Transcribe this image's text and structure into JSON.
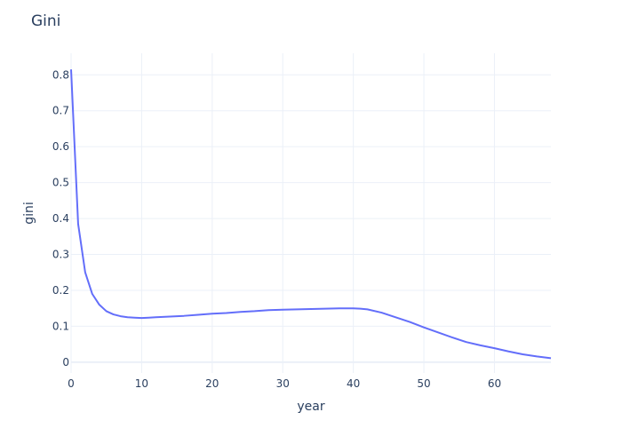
{
  "chart_data": {
    "type": "line",
    "title": "Gini",
    "xlabel": "year",
    "ylabel": "gini",
    "xlim": [
      0,
      68
    ],
    "ylim": [
      -0.03,
      0.86
    ],
    "x_ticks": [
      0,
      10,
      20,
      30,
      40,
      50,
      60
    ],
    "y_ticks": [
      0,
      0.1,
      0.2,
      0.3,
      0.4,
      0.5,
      0.6,
      0.7,
      0.8
    ],
    "y_tick_labels": [
      "0",
      "0.1",
      "0.2",
      "0.3",
      "0.4",
      "0.5",
      "0.6",
      "0.7",
      "0.8"
    ],
    "grid": true,
    "colors": {
      "line": "#636efa",
      "grid": "#ebf0f8",
      "zeroline": "#ebf0f8",
      "text": "#2a3f5f"
    },
    "series": [
      {
        "x": [
          0,
          1,
          2,
          3,
          4,
          5,
          6,
          7,
          8,
          9,
          10,
          11,
          12,
          14,
          16,
          18,
          20,
          22,
          24,
          26,
          28,
          30,
          32,
          34,
          36,
          38,
          40,
          41,
          42,
          44,
          46,
          48,
          50,
          52,
          54,
          56,
          58,
          60,
          62,
          64,
          66,
          68
        ],
        "y": [
          0.815,
          0.385,
          0.25,
          0.19,
          0.16,
          0.142,
          0.133,
          0.128,
          0.125,
          0.124,
          0.123,
          0.124,
          0.125,
          0.127,
          0.129,
          0.132,
          0.135,
          0.137,
          0.14,
          0.142,
          0.145,
          0.146,
          0.147,
          0.148,
          0.149,
          0.15,
          0.15,
          0.149,
          0.147,
          0.138,
          0.125,
          0.112,
          0.097,
          0.083,
          0.069,
          0.056,
          0.047,
          0.039,
          0.03,
          0.022,
          0.016,
          0.011
        ]
      }
    ]
  }
}
